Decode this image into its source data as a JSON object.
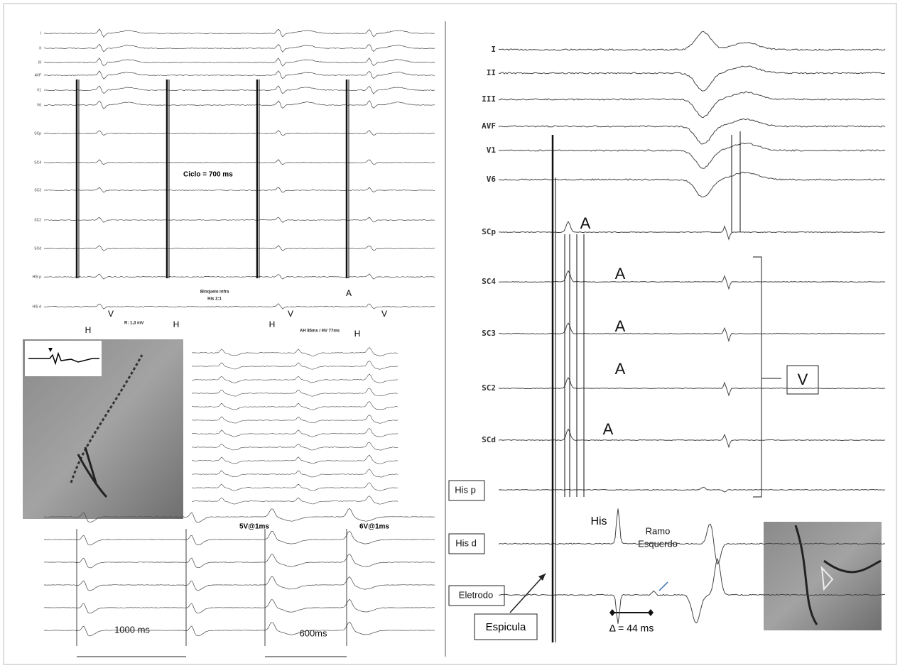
{
  "left_panel": {
    "leads": [
      "I",
      "II",
      "III",
      "AVF",
      "V1",
      "V6",
      "SCp",
      "SC4",
      "SC3",
      "SC2",
      "SCd",
      "HIS p",
      "HIS d"
    ],
    "cycle": "Ciclo =  700 ms",
    "block": [
      "Bloqueio infra",
      "His  2:1"
    ],
    "amplitude": "R: 1,3 mV",
    "intervals": "AH 85ms / HV 77ms",
    "markers": [
      "H",
      "V",
      "H",
      "H",
      "V",
      "H",
      "V",
      "A"
    ]
  },
  "middle_panel": {
    "stim_labels": [
      "5V@1ms",
      "6V@1ms"
    ]
  },
  "bottom_panel": {
    "durations": [
      "1000 ms",
      "600ms"
    ]
  },
  "right_panel": {
    "leads": [
      "I",
      "II",
      "III",
      "AVF",
      "V1",
      "V6",
      "SCp",
      "SC4",
      "SC3",
      "SC2",
      "SCd"
    ],
    "boxes": [
      "His p",
      "His d",
      "Eletrodo"
    ],
    "spike": "Espicula",
    "atrial": [
      "A",
      "A",
      "A",
      "A",
      "A"
    ],
    "ventricular": "V",
    "his": "His",
    "branch": [
      "Ramo",
      "Esquerdo"
    ],
    "delta": "Δ = 44 ms"
  }
}
